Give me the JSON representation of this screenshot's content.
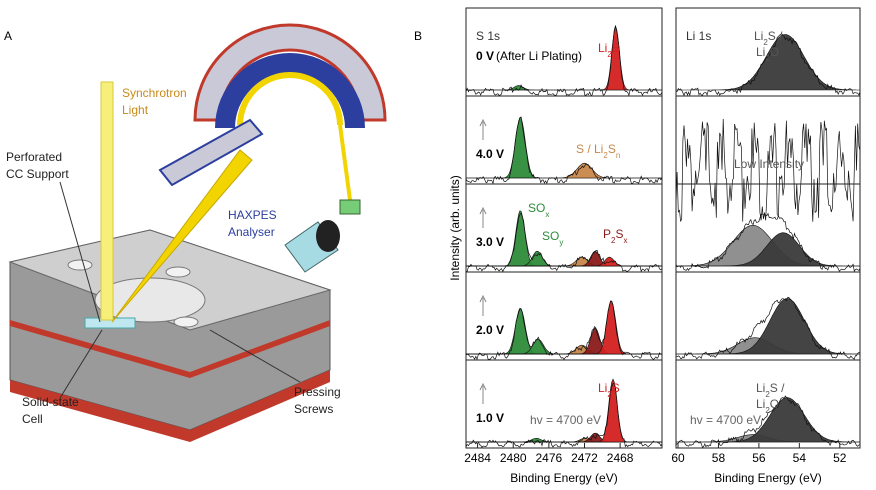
{
  "panel_a": {
    "letter": "A",
    "labels": {
      "synchrotron": [
        "Synchrotron",
        "Light"
      ],
      "analyser": [
        "HAXPES",
        "Analyser"
      ],
      "support": [
        "Perforated",
        "CC Support"
      ],
      "cell": [
        "Solid-state",
        "Cell"
      ],
      "screws": [
        "Pressing",
        "Screws"
      ]
    }
  },
  "panel_b": {
    "letter": "B",
    "ylabel": "Intensity (arb. units)",
    "columns": [
      {
        "title": "S 1s",
        "xlabel": "Binding Energy (eV)",
        "xlim": [
          2485.3,
          2463.3
        ],
        "xticks": [
          2484,
          2480,
          2476,
          2472,
          2468
        ],
        "panels": [
          {
            "voltage": "0 V",
            "note": "(After Li Plating)",
            "labels": [
              [
                "Li",
                "2",
                "S"
              ]
            ],
            "peaks": [
              {
                "center": 2479.4,
                "height": 0.06,
                "width": 1.2,
                "color": "#2e8b3a"
              },
              {
                "center": 2468.5,
                "height": 0.85,
                "width": 1.0,
                "color": "#d42020"
              }
            ]
          },
          {
            "voltage": "4.0 V",
            "labels": [
              [
                "S / Li",
                "2",
                "S",
                "n"
              ]
            ],
            "peaks": [
              {
                "center": 2479.2,
                "height": 0.82,
                "width": 1.3,
                "color": "#2e8b3a"
              },
              {
                "center": 2472.0,
                "height": 0.2,
                "width": 2.0,
                "color": "#c8874a"
              }
            ]
          },
          {
            "voltage": "3.0 V",
            "labels": [
              [
                "SO",
                "x"
              ],
              [
                "SO",
                "y"
              ],
              [
                "P",
                "2",
                "S",
                "x"
              ]
            ],
            "peaks": [
              {
                "center": 2479.2,
                "height": 0.75,
                "width": 1.2,
                "color": "#2e8b3a"
              },
              {
                "center": 2477.3,
                "height": 0.2,
                "width": 1.3,
                "color": "#2e8b3a"
              },
              {
                "center": 2472.3,
                "height": 0.12,
                "width": 1.5,
                "color": "#c8874a"
              },
              {
                "center": 2470.8,
                "height": 0.2,
                "width": 1.2,
                "color": "#8b1a1a"
              },
              {
                "center": 2469.2,
                "height": 0.12,
                "width": 1.2,
                "color": "#d42020"
              }
            ]
          },
          {
            "voltage": "2.0 V",
            "labels": [],
            "peaks": [
              {
                "center": 2479.2,
                "height": 0.62,
                "width": 1.3,
                "color": "#2e8b3a"
              },
              {
                "center": 2477.2,
                "height": 0.2,
                "width": 1.4,
                "color": "#2e8b3a"
              },
              {
                "center": 2472.3,
                "height": 0.12,
                "width": 1.5,
                "color": "#c8874a"
              },
              {
                "center": 2470.8,
                "height": 0.35,
                "width": 1.2,
                "color": "#8b1a1a"
              },
              {
                "center": 2469.0,
                "height": 0.72,
                "width": 1.2,
                "color": "#d42020"
              }
            ]
          },
          {
            "voltage": "1.0 V",
            "labels": [
              [
                "hv = 4700 eV"
              ],
              [
                "Li",
                "2",
                "S"
              ]
            ],
            "peaks": [
              {
                "center": 2477.4,
                "height": 0.05,
                "width": 1.3,
                "color": "#2e8b3a"
              },
              {
                "center": 2472.0,
                "height": 0.05,
                "width": 1.2,
                "color": "#c8874a"
              },
              {
                "center": 2470.8,
                "height": 0.12,
                "width": 1.2,
                "color": "#8b1a1a"
              },
              {
                "center": 2468.8,
                "height": 0.85,
                "width": 1.1,
                "color": "#d42020"
              }
            ]
          }
        ]
      },
      {
        "title": "Li 1s",
        "xlabel": "Binding Energy (eV)",
        "xlim": [
          60.1,
          51.0
        ],
        "xticks": [
          60,
          58,
          56,
          54,
          52
        ],
        "panels": [
          {
            "labels": [
              [
                "Li",
                "2",
                "S /"
              ],
              [
                "Li",
                "2",
                "O"
              ]
            ],
            "peaks": [
              {
                "center": 54.7,
                "height": 0.75,
                "width": 2.2,
                "color": "#3a3a3a"
              }
            ]
          },
          {
            "labels": [
              [
                "Low Intensity"
              ]
            ],
            "peaks": []
          },
          {
            "labels": [],
            "peaks": [
              {
                "center": 56.3,
                "height": 0.55,
                "width": 2.3,
                "color": "#8a8a8a"
              },
              {
                "center": 54.8,
                "height": 0.45,
                "width": 1.9,
                "color": "#3a3a3a"
              }
            ]
          },
          {
            "labels": [],
            "peaks": [
              {
                "center": 56.2,
                "height": 0.22,
                "width": 2.0,
                "color": "#8a8a8a"
              },
              {
                "center": 54.6,
                "height": 0.75,
                "width": 2.0,
                "color": "#3a3a3a"
              }
            ]
          },
          {
            "labels": [
              [
                "Li",
                "2",
                "S /"
              ],
              [
                "Li",
                "2",
                "O"
              ],
              [
                "hv = 4700 eV"
              ]
            ],
            "peaks": [
              {
                "center": 56.3,
                "height": 0.1,
                "width": 1.8,
                "color": "#8a8a8a"
              },
              {
                "center": 54.6,
                "height": 0.6,
                "width": 2.0,
                "color": "#3a3a3a"
              }
            ]
          }
        ]
      }
    ]
  }
}
